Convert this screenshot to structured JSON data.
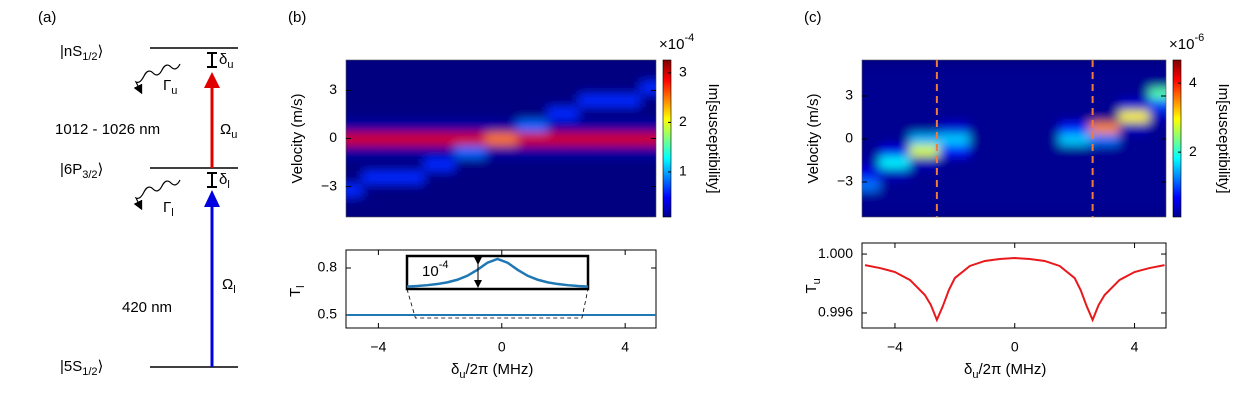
{
  "diagram": {
    "panel": "(a)",
    "levels": [
      {
        "base": "|nS",
        "sub": "1/2",
        "end": "⟩"
      },
      {
        "base": "|6P",
        "sub": "3/2",
        "end": "⟩"
      },
      {
        "base": "|5S",
        "sub": "1/2",
        "end": "⟩"
      }
    ],
    "upper_decay": {
      "base": "Γ",
      "sub": "u"
    },
    "lower_decay": {
      "base": "Γ",
      "sub": "l"
    },
    "upper_detuning": {
      "base": "δ",
      "sub": "u"
    },
    "lower_detuning": {
      "base": "δ",
      "sub": "l"
    },
    "upper_coupling": {
      "base": "Ω",
      "sub": "u"
    },
    "lower_coupling": {
      "base": "Ω",
      "sub": "l"
    },
    "upper_wavelength": "1012 - 1026 nm",
    "lower_wavelength": "420 nm"
  },
  "chart_data": [
    {
      "type": "heatmap",
      "panel": "(b)",
      "ylabel": "Velocity (m/s)",
      "x": [
        -5,
        -4,
        -3,
        -2,
        -1,
        0,
        1,
        2,
        3,
        4,
        5
      ],
      "y": [
        -4.8,
        -4,
        -3.2,
        -2.4,
        -1.6,
        -0.8,
        0,
        0.8,
        1.6,
        2.4,
        3.2,
        4,
        4.8
      ],
      "z": [
        [
          0,
          0,
          0,
          0,
          0,
          0,
          0,
          0,
          0,
          0,
          0
        ],
        [
          0,
          0,
          0,
          0,
          0,
          0,
          0,
          0,
          0,
          0,
          0
        ],
        [
          0.6,
          0,
          0,
          0,
          0,
          0,
          0,
          0,
          0,
          0,
          0
        ],
        [
          0,
          0.6,
          0.6,
          0,
          0,
          0,
          0,
          0,
          0,
          0,
          0
        ],
        [
          0,
          0,
          0,
          0.6,
          0,
          0,
          0,
          0,
          0,
          0,
          0
        ],
        [
          0.2,
          0.2,
          0.2,
          0.2,
          0.8,
          0.2,
          0.2,
          0.2,
          0.2,
          0.2,
          0.2
        ],
        [
          3,
          3,
          3,
          3,
          3,
          2.5,
          3,
          3,
          3,
          3,
          3
        ],
        [
          0.2,
          0.2,
          0.2,
          0.2,
          0.2,
          0.2,
          0.8,
          0.2,
          0.2,
          0.2,
          0.2
        ],
        [
          0,
          0,
          0,
          0,
          0,
          0,
          0,
          0.6,
          0,
          0,
          0
        ],
        [
          0,
          0,
          0,
          0,
          0,
          0,
          0,
          0,
          0.6,
          0.6,
          0
        ],
        [
          0,
          0,
          0,
          0,
          0,
          0,
          0,
          0,
          0,
          0,
          0.6
        ],
        [
          0,
          0,
          0,
          0,
          0,
          0,
          0,
          0,
          0,
          0,
          0
        ],
        [
          0,
          0,
          0,
          0,
          0,
          0,
          0,
          0,
          0,
          0,
          0
        ]
      ],
      "xlim": [
        -5.05,
        5
      ],
      "ylim": [
        -4.9,
        4.9
      ],
      "yticks": [
        {
          "value": -3,
          "label": "−3"
        },
        0,
        3
      ],
      "colormap": "jet",
      "clim": [
        0.09,
        3.26
      ],
      "colorbar_ticks": [
        1,
        2,
        3
      ],
      "colorbar_label": "Im[susceptibility]",
      "colorbar_scale": {
        "base": "×10",
        "exponent": "-4"
      }
    },
    {
      "type": "line",
      "x": [
        -5,
        5
      ],
      "series": [
        {
          "color": "#1f77b4",
          "values": [
            0.5,
            0.5
          ]
        }
      ],
      "xlim": [
        -5.05,
        5
      ],
      "ylim": [
        0.417,
        0.915
      ],
      "xticks": [
        {
          "value": -4,
          "label": "−4"
        },
        0,
        4
      ],
      "yticks": [
        0.5,
        0.8
      ],
      "xlabel": {
        "base": "δ",
        "sub": "u",
        "rest": "/2π (MHz)"
      },
      "ylabel": {
        "base": "T",
        "sub": "l"
      },
      "inset": {
        "x": [
          -2.8,
          -2.5,
          -2.2,
          -1.9,
          -1.6,
          -1.3,
          -1.0,
          -0.7,
          -0.4,
          -0.1,
          0.2,
          0.5,
          0.8,
          1.1,
          1.4,
          1.7,
          2.0,
          2.3,
          2.6
        ],
        "values": [
          0.081,
          0.1,
          0.127,
          0.165,
          0.221,
          0.308,
          0.441,
          0.64,
          0.877,
          1,
          0.877,
          0.64,
          0.441,
          0.308,
          0.221,
          0.165,
          0.127,
          0.1,
          0.081
        ],
        "xlim": [
          -2.8,
          2.6
        ],
        "ylim": [
          0,
          1.1
        ],
        "color": "#1f77b4",
        "label": {
          "base": "10",
          "exponent": "-4"
        }
      }
    },
    {
      "type": "heatmap",
      "panel": "(c)",
      "ylabel": "Velocity (m/s)",
      "x": [
        -5,
        -4,
        -3,
        -2,
        -1,
        0,
        1,
        2,
        3,
        4,
        5
      ],
      "y": [
        -4.8,
        -4,
        -3.2,
        -2.4,
        -1.6,
        -0.8,
        0,
        0.8,
        1.6,
        2.4,
        3.2,
        4,
        4.8
      ],
      "z": [
        [
          0.2,
          0.2,
          0.2,
          0.2,
          0.2,
          0.2,
          0.2,
          0.2,
          0.2,
          0.2,
          0.2
        ],
        [
          0.2,
          0.2,
          0.2,
          0.2,
          0.2,
          0.2,
          0.2,
          0.2,
          0.2,
          0.2,
          0.2
        ],
        [
          1.2,
          0.2,
          0.2,
          0.2,
          0.2,
          0.2,
          0.2,
          0.2,
          0.2,
          0.2,
          0.2
        ],
        [
          0.6,
          0.4,
          0.2,
          0.2,
          0.2,
          0.2,
          0.2,
          0.2,
          0.2,
          0.2,
          0.2
        ],
        [
          0.3,
          1.8,
          0.4,
          0.2,
          0.2,
          0.2,
          0.2,
          0.2,
          0.2,
          0.2,
          0.2
        ],
        [
          0.2,
          0.6,
          2.8,
          0.8,
          0.2,
          0.2,
          0.2,
          0.2,
          0.2,
          0.2,
          0.2
        ],
        [
          0.2,
          0.2,
          1.5,
          1.6,
          0.2,
          0.2,
          0.2,
          1.6,
          1.2,
          0.2,
          0.2
        ],
        [
          0.2,
          0.2,
          0.2,
          0.5,
          0.2,
          0.2,
          0.2,
          0.8,
          3.5,
          0.4,
          0.2
        ],
        [
          0.2,
          0.2,
          0.2,
          0.2,
          0.2,
          0.2,
          0.2,
          0.2,
          0.2,
          3.0,
          0.4
        ],
        [
          0.2,
          0.2,
          0.2,
          0.2,
          0.2,
          0.2,
          0.2,
          0.2,
          0.2,
          0.5,
          1.0
        ],
        [
          0.2,
          0.2,
          0.2,
          0.2,
          0.2,
          0.2,
          0.2,
          0.2,
          0.2,
          0.2,
          2.2
        ],
        [
          0.2,
          0.2,
          0.2,
          0.2,
          0.2,
          0.2,
          0.2,
          0.2,
          0.2,
          0.2,
          0.2
        ],
        [
          0.2,
          0.2,
          0.2,
          0.2,
          0.2,
          0.2,
          0.2,
          0.2,
          0.2,
          0.2,
          0.2
        ]
      ],
      "xlim": [
        -5.1,
        5.05
      ],
      "ylim": [
        -5.44,
        5.51
      ],
      "yticks": [
        {
          "value": -3,
          "label": "−3"
        },
        0,
        3
      ],
      "colormap": "jet",
      "clim": [
        0.12,
        4.67
      ],
      "colorbar_ticks": [
        2,
        4
      ],
      "colorbar_label": "Im[susceptibility]",
      "colorbar_scale": {
        "base": "×10",
        "exponent": "-6"
      },
      "dashed_lines": {
        "x": [
          -2.6,
          2.6
        ],
        "color": "#f4793b"
      }
    },
    {
      "type": "line",
      "x": [
        -5,
        -4.5,
        -4,
        -3.5,
        -3,
        -2.8,
        -2.6,
        -2.4,
        -2.2,
        -2,
        -1.5,
        -1,
        -0.5,
        0,
        0.5,
        1,
        1.5,
        2,
        2.2,
        2.4,
        2.6,
        2.8,
        3,
        3.5,
        4,
        4.5,
        5
      ],
      "series": [
        {
          "color": "#e8191c",
          "values": [
            0.99925,
            0.99905,
            0.99878,
            0.99824,
            0.99722,
            0.99654,
            0.99553,
            0.99647,
            0.99756,
            0.99837,
            0.99919,
            0.99953,
            0.99966,
            0.99973,
            0.99966,
            0.99953,
            0.99919,
            0.99837,
            0.99756,
            0.99647,
            0.99553,
            0.99654,
            0.99722,
            0.99824,
            0.99878,
            0.99905,
            0.99925
          ]
        }
      ],
      "xlim": [
        -5.1,
        5.05
      ],
      "ylim": [
        0.99498,
        1.00075
      ],
      "xticks": [
        {
          "value": -4,
          "label": "−4"
        },
        0,
        4
      ],
      "yticks": [
        {
          "value": 1,
          "label": "1.000"
        },
        {
          "value": 0.996,
          "label": "0.996"
        }
      ],
      "xlabel": {
        "base": "δ",
        "sub": "u",
        "rest": "/2π (MHz)"
      },
      "ylabel": {
        "base": "T",
        "sub": "u"
      }
    }
  ]
}
